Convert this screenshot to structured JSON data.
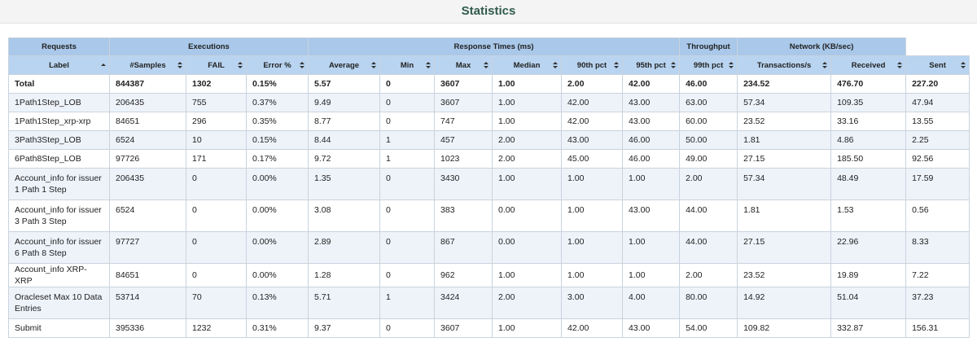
{
  "header": {
    "title": "Statistics"
  },
  "table": {
    "groups": [
      "Requests",
      "Executions",
      "Response Times (ms)",
      "Throughput",
      "Network (KB/sec)"
    ],
    "columns": [
      "Label",
      "#Samples",
      "FAIL",
      "Error %",
      "Average",
      "Min",
      "Max",
      "Median",
      "90th pct",
      "95th pct",
      "99th pct",
      "Transactions/s",
      "Received",
      "Sent"
    ],
    "rows": [
      [
        "Total",
        "844387",
        "1302",
        "0.15%",
        "5.57",
        "0",
        "3607",
        "1.00",
        "2.00",
        "42.00",
        "46.00",
        "234.52",
        "476.70",
        "227.20"
      ],
      [
        "1Path1Step_LOB",
        "206435",
        "755",
        "0.37%",
        "9.49",
        "0",
        "3607",
        "1.00",
        "42.00",
        "43.00",
        "63.00",
        "57.34",
        "109.35",
        "47.94"
      ],
      [
        "1Path1Step_xrp-xrp",
        "84651",
        "296",
        "0.35%",
        "8.77",
        "0",
        "747",
        "1.00",
        "42.00",
        "43.00",
        "60.00",
        "23.52",
        "33.16",
        "13.55"
      ],
      [
        "3Path3Step_LOB",
        "6524",
        "10",
        "0.15%",
        "8.44",
        "1",
        "457",
        "2.00",
        "43.00",
        "46.00",
        "50.00",
        "1.81",
        "4.86",
        "2.25"
      ],
      [
        "6Path8Step_LOB",
        "97726",
        "171",
        "0.17%",
        "9.72",
        "1",
        "1023",
        "2.00",
        "45.00",
        "46.00",
        "49.00",
        "27.15",
        "185.50",
        "92.56"
      ],
      [
        "Account_info for issuer 1 Path 1 Step",
        "206435",
        "0",
        "0.00%",
        "1.35",
        "0",
        "3430",
        "1.00",
        "1.00",
        "1.00",
        "2.00",
        "57.34",
        "48.49",
        "17.59"
      ],
      [
        "Account_info for issuer 3 Path 3 Step",
        "6524",
        "0",
        "0.00%",
        "3.08",
        "0",
        "383",
        "0.00",
        "1.00",
        "43.00",
        "44.00",
        "1.81",
        "1.53",
        "0.56"
      ],
      [
        "Account_info for issuer 6 Path 8 Step",
        "97727",
        "0",
        "0.00%",
        "2.89",
        "0",
        "867",
        "0.00",
        "1.00",
        "1.00",
        "44.00",
        "27.15",
        "22.96",
        "8.33"
      ],
      [
        "Account_info XRP-XRP",
        "84651",
        "0",
        "0.00%",
        "1.28",
        "0",
        "962",
        "1.00",
        "1.00",
        "1.00",
        "2.00",
        "23.52",
        "19.89",
        "7.22"
      ],
      [
        "Oracleset Max 10 Data Entries",
        "53714",
        "70",
        "0.13%",
        "5.71",
        "1",
        "3424",
        "2.00",
        "3.00",
        "4.00",
        "80.00",
        "14.92",
        "51.04",
        "37.23"
      ],
      [
        "Submit",
        "395336",
        "1232",
        "0.31%",
        "9.37",
        "0",
        "3607",
        "1.00",
        "42.00",
        "43.00",
        "54.00",
        "109.82",
        "332.87",
        "156.31"
      ]
    ]
  }
}
